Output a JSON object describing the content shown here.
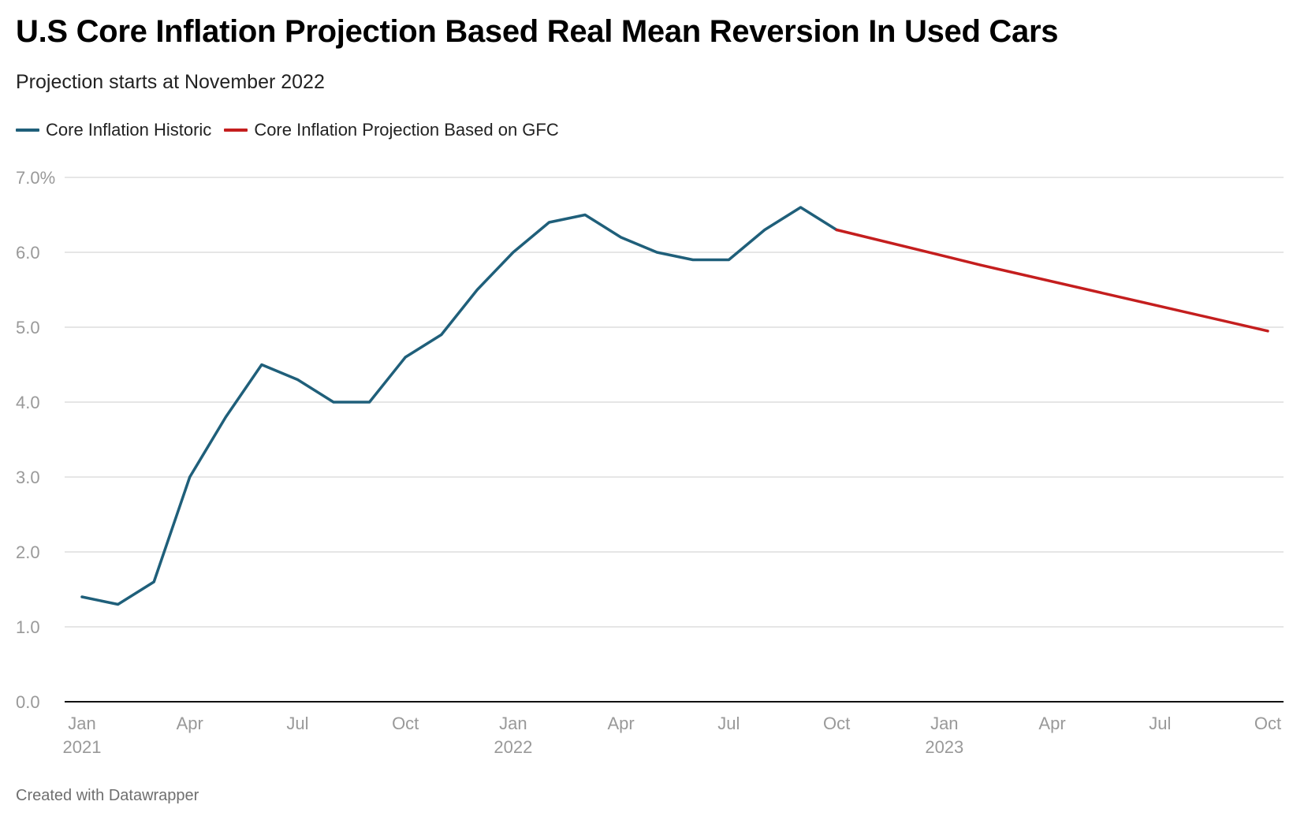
{
  "title": "U.S Core Inflation Projection Based Real Mean Reversion In Used Cars",
  "subtitle": "Projection starts at November 2022",
  "legend": [
    {
      "label": "Core Inflation Historic",
      "color": "#1f5f7a"
    },
    {
      "label": "Core Inflation Projection Based on GFC",
      "color": "#c41e1e"
    }
  ],
  "footer": "Created with Datawrapper",
  "chart_data": {
    "type": "line",
    "ylim": [
      0,
      7
    ],
    "y_ticks": [
      {
        "value": 0,
        "label": "0.0"
      },
      {
        "value": 1,
        "label": "1.0"
      },
      {
        "value": 2,
        "label": "2.0"
      },
      {
        "value": 3,
        "label": "3.0"
      },
      {
        "value": 4,
        "label": "4.0"
      },
      {
        "value": 5,
        "label": "5.0"
      },
      {
        "value": 6,
        "label": "6.0"
      },
      {
        "value": 7,
        "label": "7.0%"
      }
    ],
    "x_range": [
      "2021-01",
      "2023-10"
    ],
    "x_ticks": [
      {
        "date": "2021-01",
        "label": "Jan",
        "year": "2021"
      },
      {
        "date": "2021-04",
        "label": "Apr",
        "year": ""
      },
      {
        "date": "2021-07",
        "label": "Jul",
        "year": ""
      },
      {
        "date": "2021-10",
        "label": "Oct",
        "year": ""
      },
      {
        "date": "2022-01",
        "label": "Jan",
        "year": "2022"
      },
      {
        "date": "2022-04",
        "label": "Apr",
        "year": ""
      },
      {
        "date": "2022-07",
        "label": "Jul",
        "year": ""
      },
      {
        "date": "2022-10",
        "label": "Oct",
        "year": ""
      },
      {
        "date": "2023-01",
        "label": "Jan",
        "year": "2023"
      },
      {
        "date": "2023-04",
        "label": "Apr",
        "year": ""
      },
      {
        "date": "2023-07",
        "label": "Jul",
        "year": ""
      },
      {
        "date": "2023-10",
        "label": "Oct",
        "year": ""
      }
    ],
    "grid": true,
    "series": [
      {
        "name": "Core Inflation Historic",
        "color": "#1f5f7a",
        "x": [
          "2021-01",
          "2021-02",
          "2021-03",
          "2021-04",
          "2021-05",
          "2021-06",
          "2021-07",
          "2021-08",
          "2021-09",
          "2021-10",
          "2021-11",
          "2021-12",
          "2022-01",
          "2022-02",
          "2022-03",
          "2022-04",
          "2022-05",
          "2022-06",
          "2022-07",
          "2022-08",
          "2022-09",
          "2022-10"
        ],
        "values": [
          1.4,
          1.3,
          1.6,
          3.0,
          3.8,
          4.5,
          4.3,
          4.0,
          4.0,
          4.6,
          4.9,
          5.5,
          6.0,
          6.4,
          6.5,
          6.2,
          6.0,
          5.9,
          5.9,
          6.3,
          6.6,
          6.3
        ]
      },
      {
        "name": "Core Inflation Projection Based on GFC",
        "color": "#c41e1e",
        "x": [
          "2022-10",
          "2023-01",
          "2023-02",
          "2023-10"
        ],
        "values": [
          6.3,
          5.95,
          5.83,
          4.95
        ]
      }
    ]
  }
}
